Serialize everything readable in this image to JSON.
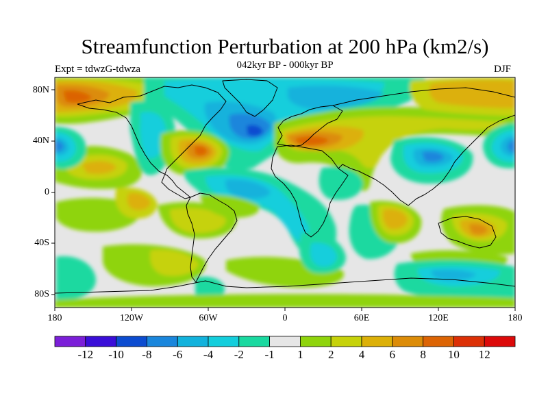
{
  "title": "Streamfunction Perturbation at 200 hPa (km2/s)",
  "left_subtitle": "Expt = tdwzG-tdwza",
  "center_subtitle": "042kyr BP - 000kyr BP",
  "right_subtitle": "DJF",
  "lat_labels": [
    "80N",
    "40N",
    "0",
    "40S",
    "80S"
  ],
  "lon_labels": [
    "180",
    "120W",
    "60W",
    "0",
    "60E",
    "120E",
    "180"
  ],
  "colorbar": {
    "labels": [
      "-12",
      "-10",
      "-8",
      "-6",
      "-4",
      "-2",
      "-1",
      "1",
      "2",
      "4",
      "6",
      "8",
      "10",
      "12"
    ],
    "colors": [
      "#7b1fd8",
      "#3a0ed8",
      "#0c4cd0",
      "#1a86dc",
      "#12b2dc",
      "#14cedc",
      "#1ad9a0",
      "#e6e6e6",
      "#8fd40c",
      "#c6d20a",
      "#dcb008",
      "#dc8c08",
      "#dc6404",
      "#dc3006",
      "#dc0a0a"
    ]
  },
  "colors": {
    "background": "#e6e6e6",
    "coast": "#000000"
  }
}
